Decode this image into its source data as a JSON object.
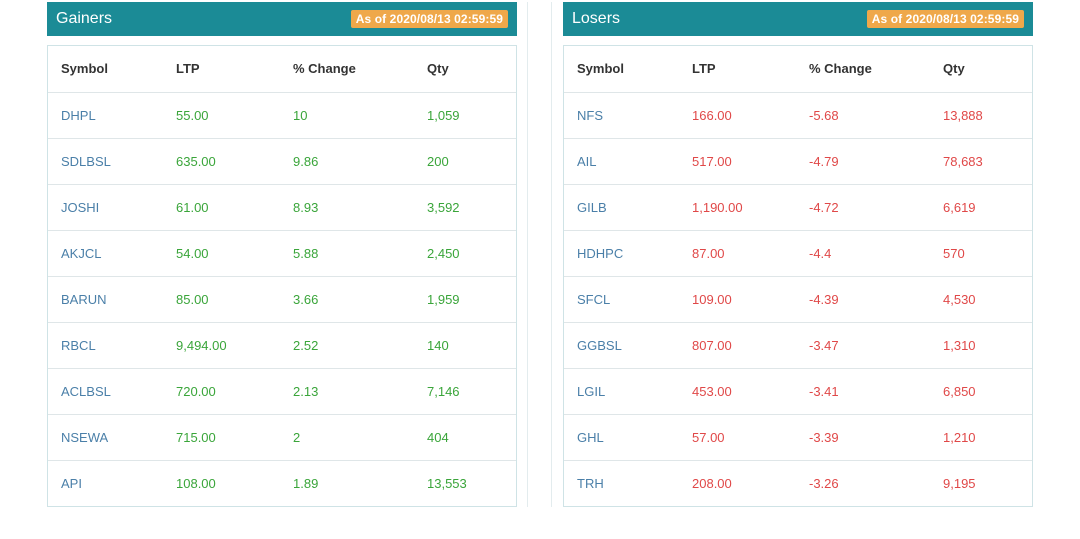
{
  "colors": {
    "header_bg": "#1b8b96",
    "badge_bg": "#efa84a",
    "gain": "#3aa53a",
    "loss": "#e04848",
    "symbol": "#4a7fa8"
  },
  "columns": [
    "Symbol",
    "LTP",
    "% Change",
    "Qty"
  ],
  "gainers": {
    "title": "Gainers",
    "as_of": "As of 2020/08/13 02:59:59",
    "rows": [
      {
        "symbol": "DHPL",
        "ltp": "55.00",
        "change": "10",
        "qty": "1,059"
      },
      {
        "symbol": "SDLBSL",
        "ltp": "635.00",
        "change": "9.86",
        "qty": "200"
      },
      {
        "symbol": "JOSHI",
        "ltp": "61.00",
        "change": "8.93",
        "qty": "3,592"
      },
      {
        "symbol": "AKJCL",
        "ltp": "54.00",
        "change": "5.88",
        "qty": "2,450"
      },
      {
        "symbol": "BARUN",
        "ltp": "85.00",
        "change": "3.66",
        "qty": "1,959"
      },
      {
        "symbol": "RBCL",
        "ltp": "9,494.00",
        "change": "2.52",
        "qty": "140"
      },
      {
        "symbol": "ACLBSL",
        "ltp": "720.00",
        "change": "2.13",
        "qty": "7,146"
      },
      {
        "symbol": "NSEWA",
        "ltp": "715.00",
        "change": "2",
        "qty": "404"
      },
      {
        "symbol": "API",
        "ltp": "108.00",
        "change": "1.89",
        "qty": "13,553"
      }
    ]
  },
  "losers": {
    "title": "Losers",
    "as_of": "As of 2020/08/13 02:59:59",
    "rows": [
      {
        "symbol": "NFS",
        "ltp": "166.00",
        "change": "-5.68",
        "qty": "13,888"
      },
      {
        "symbol": "AIL",
        "ltp": "517.00",
        "change": "-4.79",
        "qty": "78,683"
      },
      {
        "symbol": "GILB",
        "ltp": "1,190.00",
        "change": "-4.72",
        "qty": "6,619"
      },
      {
        "symbol": "HDHPC",
        "ltp": "87.00",
        "change": "-4.4",
        "qty": "570"
      },
      {
        "symbol": "SFCL",
        "ltp": "109.00",
        "change": "-4.39",
        "qty": "4,530"
      },
      {
        "symbol": "GGBSL",
        "ltp": "807.00",
        "change": "-3.47",
        "qty": "1,310"
      },
      {
        "symbol": "LGIL",
        "ltp": "453.00",
        "change": "-3.41",
        "qty": "6,850"
      },
      {
        "symbol": "GHL",
        "ltp": "57.00",
        "change": "-3.39",
        "qty": "1,210"
      },
      {
        "symbol": "TRH",
        "ltp": "208.00",
        "change": "-3.26",
        "qty": "9,195"
      }
    ]
  }
}
